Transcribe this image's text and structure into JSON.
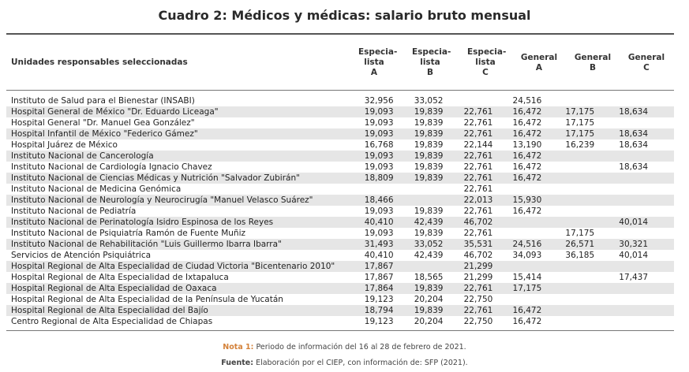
{
  "title": "Cuadro 2: Médicos y médicas: salario bruto mensual",
  "header": {
    "label": "Unidades responsables seleccionadas",
    "columns": [
      [
        "Especia-",
        "lista",
        "A"
      ],
      [
        "Especia-",
        "lista",
        "B"
      ],
      [
        "Especia-",
        "lista",
        "C"
      ],
      [
        "General",
        "A"
      ],
      [
        "General",
        "B"
      ],
      [
        "General",
        "C"
      ]
    ]
  },
  "rows": [
    [
      "Instituto de Salud para el Bienestar (INSABI)",
      "32,956",
      "33,052",
      "",
      "24,516",
      "",
      ""
    ],
    [
      "Hospital General de México \"Dr. Eduardo Liceaga\"",
      "19,093",
      "19,839",
      "22,761",
      "16,472",
      "17,175",
      "18,634"
    ],
    [
      "Hospital General \"Dr. Manuel Gea González\"",
      "19,093",
      "19,839",
      "22,761",
      "16,472",
      "17,175",
      ""
    ],
    [
      "Hospital Infantil de México \"Federico Gámez\"",
      "19,093",
      "19,839",
      "22,761",
      "16,472",
      "17,175",
      "18,634"
    ],
    [
      "Hospital Juárez de México",
      "16,768",
      "19,839",
      "22,144",
      "13,190",
      "16,239",
      "18,634"
    ],
    [
      "Instituto Nacional de Cancerología",
      "19,093",
      "19,839",
      "22,761",
      "16,472",
      "",
      ""
    ],
    [
      "Instituto Nacional de Cardiología Ignacio Chavez",
      "19,093",
      "19,839",
      "22,761",
      "16,472",
      "",
      "18,634"
    ],
    [
      "Instituto Nacional de Ciencias Médicas y Nutrición \"Salvador Zubirán\"",
      "18,809",
      "19,839",
      "22,761",
      "16,472",
      "",
      ""
    ],
    [
      "Instituto Nacional de Medicina Genómica",
      "",
      "",
      "22,761",
      "",
      "",
      ""
    ],
    [
      "Instituto Nacional de Neurología y Neurocirugía \"Manuel Velasco Suárez\"",
      "18,466",
      "",
      "22,013",
      "15,930",
      "",
      ""
    ],
    [
      "Instituto Nacional de Pediatría",
      "19,093",
      "19,839",
      "22,761",
      "16,472",
      "",
      ""
    ],
    [
      "Instituto Nacional de Perinatología Isidro Espinosa de los Reyes",
      "40,410",
      "42,439",
      "46,702",
      "",
      "",
      "40,014"
    ],
    [
      "Instituto Nacional de Psiquiatría Ramón de Fuente Muñiz",
      "19,093",
      "19,839",
      "22,761",
      "",
      "17,175",
      ""
    ],
    [
      "Instituto Nacional de Rehabilitación \"Luis Guillermo Ibarra Ibarra\"",
      "31,493",
      "33,052",
      "35,531",
      "24,516",
      "26,571",
      "30,321"
    ],
    [
      "Servicios de Atención Psiquiátrica",
      "40,410",
      "42,439",
      "46,702",
      "34,093",
      "36,185",
      "40,014"
    ],
    [
      "Hospital Regional de Alta Especialidad de Ciudad Victoria \"Bicentenario 2010\"",
      "17,867",
      "",
      "21,299",
      "",
      "",
      ""
    ],
    [
      "Hospital Regional de Alta Especialidad de Ixtapaluca",
      "17,867",
      "18,565",
      "21,299",
      "15,414",
      "",
      "17,437"
    ],
    [
      "Hospital Regional de Alta Especialidad de Oaxaca",
      "17,864",
      "19,839",
      "22,761",
      "17,175",
      "",
      ""
    ],
    [
      "Hospital Regional de Alta Especialidad de la Península de Yucatán",
      "19,123",
      "20,204",
      "22,750",
      "",
      "",
      ""
    ],
    [
      "Hospital Regional de Alta Especialidad del Bajío",
      "18,794",
      "19,839",
      "22,761",
      "16,472",
      "",
      ""
    ],
    [
      "Centro Regional de Alta Especialidad de Chiapas",
      "19,123",
      "20,204",
      "22,750",
      "16,472",
      "",
      ""
    ]
  ],
  "notes": {
    "note1_label": "Nota 1:",
    "note1_text": "Periodo de información del 16 al 28 de febrero de 2021.",
    "source_label": "Fuente:",
    "source_text": "Elaboración por el CIEP, con información de: SFP (2021)."
  },
  "colors": {
    "note_label": "#d4823a",
    "row_stripe": "#e6e6e6"
  }
}
